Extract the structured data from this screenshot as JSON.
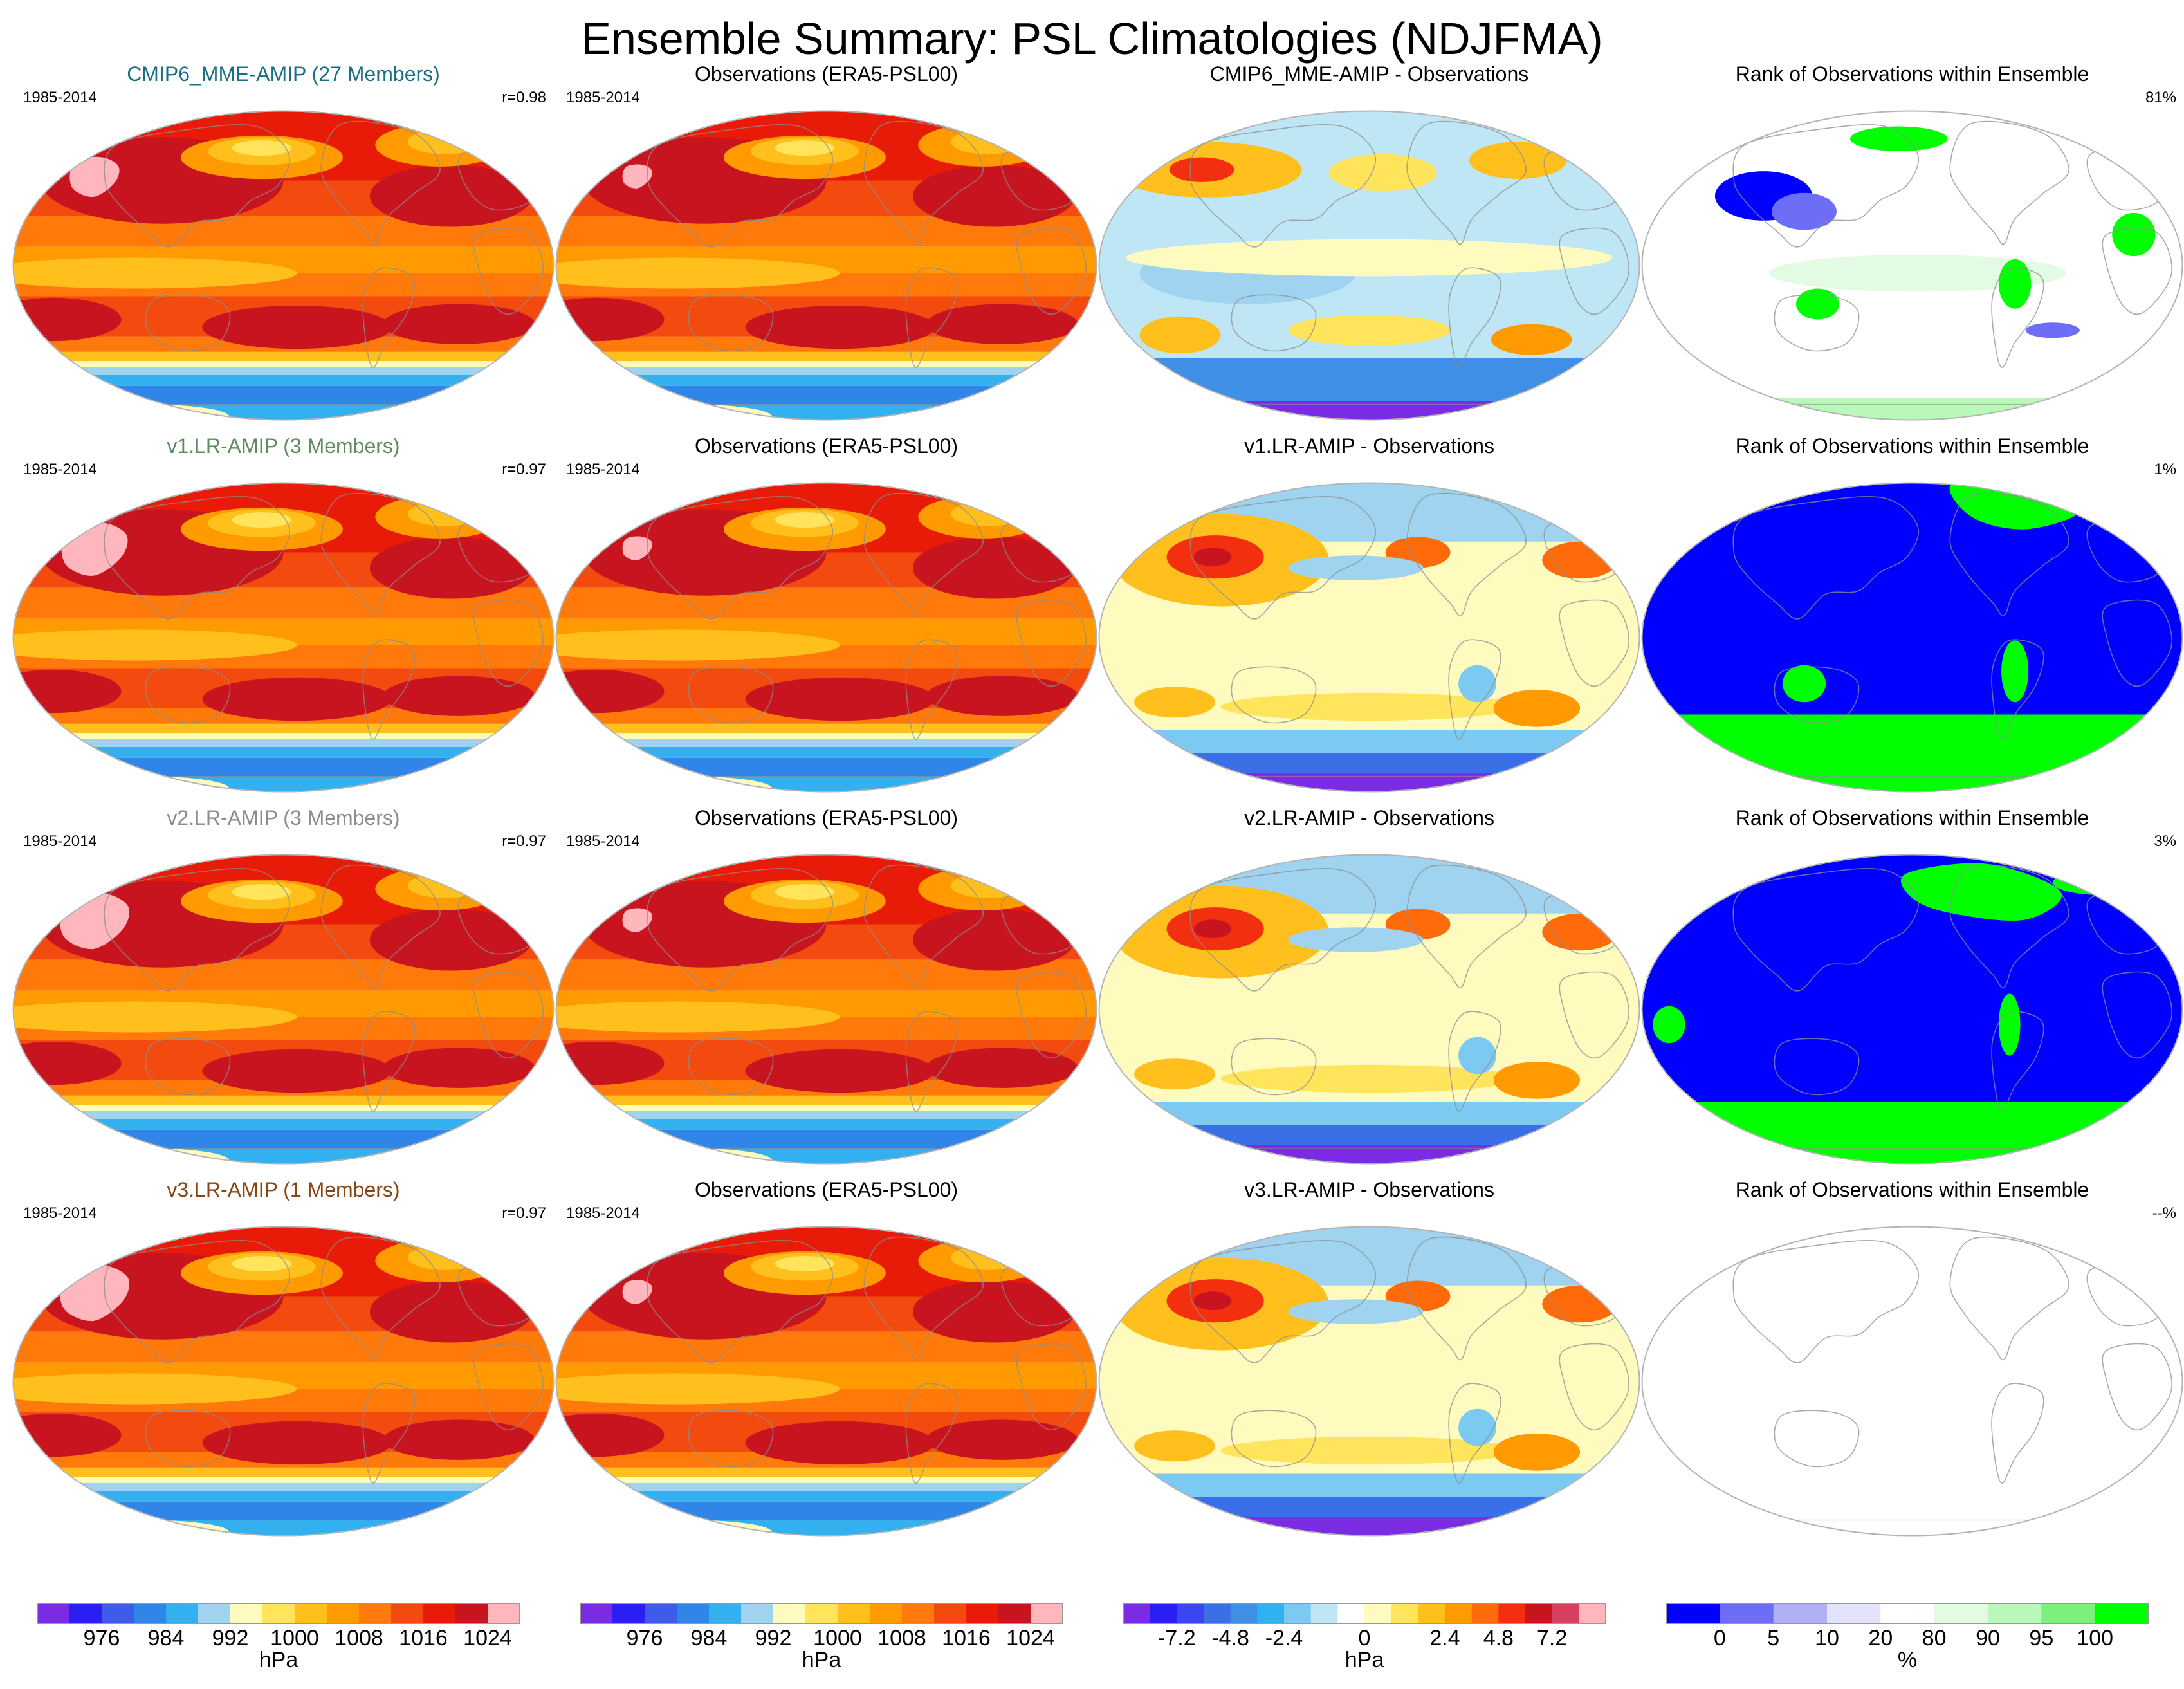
{
  "title": "Ensemble Summary: PSL Climatologies (NDJFMA)",
  "rows": [
    {
      "model": {
        "label": "CMIP6_MME-AMIP (27 Members)",
        "color": "#1a6f86",
        "years": "1985-2014",
        "stat": "r=0.98",
        "blob_scale": 0.75
      },
      "obs": {
        "label": "Observations (ERA5-PSL00)",
        "years": "1985-2014"
      },
      "diff": {
        "label": "CMIP6_MME-AMIP - Observations",
        "variant": "mme"
      },
      "rank": {
        "label": "Rank of Observations within Ensemble",
        "pct": "81%",
        "variant": "mme"
      }
    },
    {
      "model": {
        "label": "v1.LR-AMIP (3 Members)",
        "color": "#5f8c5f",
        "years": "1985-2014",
        "stat": "r=0.97",
        "blob_scale": 1.0
      },
      "obs": {
        "label": "Observations (ERA5-PSL00)",
        "years": "1985-2014"
      },
      "diff": {
        "label": "v1.LR-AMIP - Observations",
        "variant": "v1"
      },
      "rank": {
        "label": "Rank of Observations within Ensemble",
        "pct": "1%",
        "variant": "v1"
      }
    },
    {
      "model": {
        "label": "v2.LR-AMIP (3 Members)",
        "color": "#8c8c8c",
        "years": "1985-2014",
        "stat": "r=0.97",
        "blob_scale": 1.05
      },
      "obs": {
        "label": "Observations (ERA5-PSL00)",
        "years": "1985-2014"
      },
      "diff": {
        "label": "v2.LR-AMIP - Observations",
        "variant": "v2"
      },
      "rank": {
        "label": "Rank of Observations within Ensemble",
        "pct": "3%",
        "variant": "v2"
      }
    },
    {
      "model": {
        "label": "v3.LR-AMIP (1 Members)",
        "color": "#8b4513",
        "years": "1985-2014",
        "stat": "r=0.97",
        "blob_scale": 1.05
      },
      "obs": {
        "label": "Observations (ERA5-PSL00)",
        "years": "1985-2014"
      },
      "diff": {
        "label": "v3.LR-AMIP - Observations",
        "variant": "v3"
      },
      "rank": {
        "label": "Rank of Observations within Ensemble",
        "pct": "--%",
        "variant": "empty"
      }
    }
  ],
  "colorbars": {
    "psl": {
      "unit": "hPa",
      "colors": [
        "#7b2be3",
        "#2a1ff0",
        "#3d5be8",
        "#2f86e8",
        "#33b0f0",
        "#9fd3ef",
        "#fffbbf",
        "#ffe45c",
        "#ffc01e",
        "#ff9a00",
        "#ff7a0a",
        "#f24a0f",
        "#e81b08",
        "#c8141e",
        "#ffb7bd"
      ],
      "ticks": [
        "976",
        "984",
        "992",
        "1000",
        "1008",
        "1016",
        "1024"
      ]
    },
    "diff": {
      "unit": "hPa",
      "colors": [
        "#7b2be3",
        "#2a1ff0",
        "#3a46ee",
        "#3a6fe8",
        "#3f8fe6",
        "#2fb2f2",
        "#7ccaf2",
        "#bfe6f4",
        "#ffffff",
        "#fffbbf",
        "#ffe45c",
        "#ffc01e",
        "#ff9a00",
        "#ff6a0a",
        "#f2300f",
        "#c8141e",
        "#d84060",
        "#ffb7bd"
      ],
      "ticks": [
        "-7.2",
        "-4.8",
        "-2.4",
        "0",
        "2.4",
        "4.8",
        "7.2"
      ]
    },
    "rank": {
      "unit": "%",
      "colors": [
        "#0000ff",
        "#6d6df8",
        "#b0b0f4",
        "#e2e2fb",
        "#ffffff",
        "#e2fbe2",
        "#b8f8b8",
        "#7cf07c",
        "#00ff00"
      ],
      "ticks": [
        "0",
        "5",
        "10",
        "20",
        "80",
        "90",
        "95",
        "100"
      ]
    }
  },
  "palette": {
    "pink": "#ffb7bd",
    "land_line": "#8e8e8e",
    "frame": "#b4b4b4"
  }
}
